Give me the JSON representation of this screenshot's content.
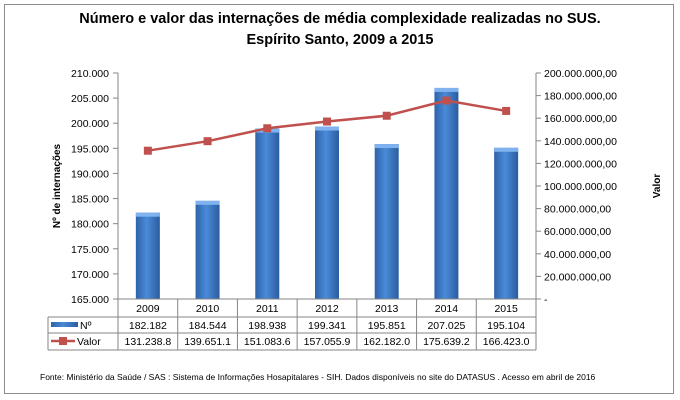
{
  "chart_data": {
    "type": "bar+line",
    "title": "Número e valor das internações de média complexidade realizadas no SUS.",
    "subtitle": "Espírito Santo, 2009 a 2015",
    "categories": [
      "2009",
      "2010",
      "2011",
      "2012",
      "2013",
      "2014",
      "2015"
    ],
    "ylabel_left": "Nº de internações",
    "ylabel_right": "Valor",
    "ylim_left": [
      165000,
      210000
    ],
    "ylim_right": [
      0,
      200000000
    ],
    "left_ticks": [
      "165.000",
      "170.000",
      "175.000",
      "180.000",
      "185.000",
      "190.000",
      "195.000",
      "200.000",
      "205.000",
      "210.000"
    ],
    "right_ticks": [
      "-",
      "20.000.000,00",
      "40.000.000,00",
      "60.000.000,00",
      "80.000.000,00",
      "100.000.000,00",
      "120.000.000,00",
      "140.000.000,00",
      "160.000.000,00",
      "180.000.000,00",
      "200.000.000,00"
    ],
    "series": [
      {
        "name": "Nº",
        "type": "bar",
        "axis": "left",
        "color": "#3f7fcf",
        "values": [
          182182,
          184544,
          198938,
          199341,
          195851,
          207025,
          195104
        ],
        "labels": [
          "182.182",
          "184.544",
          "198.938",
          "199.341",
          "195.851",
          "207.025",
          "195.104"
        ]
      },
      {
        "name": "Valor",
        "type": "line",
        "axis": "right",
        "color": "#c0504d",
        "values": [
          131238800,
          139651100,
          151083600,
          157055900,
          162182000,
          175639200,
          166423000
        ],
        "labels": [
          "131.238.8",
          "139.651.1",
          "151.083.6",
          "157.055.9",
          "162.182.0",
          "175.639.2",
          "166.423.0"
        ]
      }
    ],
    "grid": false,
    "legend": "data-table"
  },
  "source": "Fonte:  Ministério da Saúde / SAS : Sistema de Informações Hosapitalares - SIH. Dados disponíveis no site do DATASUS . Acesso em abril de 2016"
}
